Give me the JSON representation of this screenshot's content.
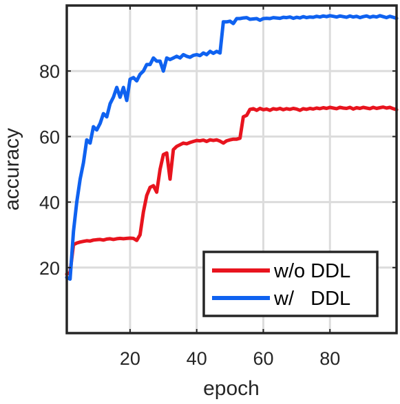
{
  "chart_data": {
    "type": "line",
    "xlabel": "epoch",
    "ylabel": "accuracy",
    "xlim": [
      1,
      100
    ],
    "ylim": [
      0,
      100
    ],
    "xticks": [
      20,
      40,
      60,
      80
    ],
    "yticks": [
      20,
      40,
      60,
      80
    ],
    "xtick_labels": [
      "20",
      "40",
      "60",
      "80"
    ],
    "ytick_labels": [
      "20",
      "40",
      "60",
      "80"
    ],
    "grid": true,
    "legend_position": "bottom-right",
    "series": [
      {
        "name": "w/o DDL",
        "color": "#e8141e",
        "x": [
          1,
          2,
          3,
          4,
          5,
          6,
          7,
          8,
          9,
          10,
          11,
          12,
          13,
          14,
          15,
          16,
          17,
          18,
          19,
          20,
          21,
          22,
          23,
          24,
          25,
          26,
          27,
          28,
          29,
          30,
          31,
          32,
          33,
          34,
          35,
          36,
          37,
          38,
          39,
          40,
          41,
          42,
          43,
          44,
          45,
          46,
          47,
          48,
          49,
          50,
          51,
          52,
          53,
          54,
          55,
          56,
          57,
          58,
          59,
          60,
          61,
          62,
          63,
          64,
          65,
          66,
          67,
          68,
          69,
          70,
          71,
          72,
          73,
          74,
          75,
          76,
          77,
          78,
          79,
          80,
          81,
          82,
          83,
          84,
          85,
          86,
          87,
          88,
          89,
          90,
          91,
          92,
          93,
          94,
          95,
          96,
          97,
          98,
          99,
          100
        ],
        "y": [
          18,
          18.5,
          27,
          27.5,
          27.8,
          28,
          28.2,
          28.1,
          28.4,
          28.5,
          28.6,
          28.4,
          28.7,
          28.8,
          28.6,
          28.8,
          28.9,
          28.8,
          28.9,
          29,
          28.9,
          28.3,
          30,
          37,
          42,
          44.5,
          45,
          43,
          50,
          54.5,
          55,
          47,
          56,
          57,
          57.5,
          58,
          57.8,
          58.2,
          58.5,
          58.8,
          58.7,
          58.9,
          58.5,
          59,
          58.8,
          59,
          58.6,
          58,
          58.7,
          59,
          59.2,
          59.2,
          59.5,
          66,
          66.5,
          68.3,
          68.5,
          68,
          68.6,
          68.2,
          68.4,
          68,
          68.5,
          68.3,
          68.6,
          68.2,
          68.5,
          68.3,
          68.6,
          68.4,
          68,
          68.5,
          68.3,
          68.6,
          68.4,
          68.7,
          68.5,
          68.8,
          68.6,
          68.9,
          68.7,
          68.5,
          68.9,
          68.7,
          68.6,
          68.9,
          68.4,
          68.8,
          68.6,
          68.9,
          68.7,
          68.5,
          68.9,
          68.6,
          68.8,
          69,
          68.7,
          68.9,
          68.5,
          68.2
        ]
      },
      {
        "name": "w/   DDL",
        "color": "#0f62f0",
        "x": [
          1,
          2,
          3,
          4,
          5,
          6,
          7,
          8,
          9,
          10,
          11,
          12,
          13,
          14,
          15,
          16,
          17,
          18,
          19,
          20,
          21,
          22,
          23,
          24,
          25,
          26,
          27,
          28,
          29,
          30,
          31,
          32,
          33,
          34,
          35,
          36,
          37,
          38,
          39,
          40,
          41,
          42,
          43,
          44,
          45,
          46,
          47,
          48,
          49,
          50,
          51,
          52,
          53,
          54,
          55,
          56,
          57,
          58,
          59,
          60,
          61,
          62,
          63,
          64,
          65,
          66,
          67,
          68,
          69,
          70,
          71,
          72,
          73,
          74,
          75,
          76,
          77,
          78,
          79,
          80,
          81,
          82,
          83,
          84,
          85,
          86,
          87,
          88,
          89,
          90,
          91,
          92,
          93,
          94,
          95,
          96,
          97,
          98,
          99,
          100
        ],
        "y": [
          17,
          16.5,
          31,
          40,
          47,
          52,
          59,
          58,
          63,
          62,
          64,
          67,
          66,
          70,
          72,
          75,
          72,
          75,
          71,
          77.5,
          78,
          77,
          79,
          80,
          82,
          82,
          84,
          83,
          83,
          80,
          84,
          83.5,
          84,
          84.5,
          84,
          85,
          84.5,
          84.2,
          84.8,
          85,
          84.7,
          85.5,
          85,
          86,
          85.4,
          86,
          85.5,
          95,
          95,
          95.2,
          94.5,
          96,
          96,
          96.2,
          96.3,
          95.8,
          95.9,
          96,
          95.5,
          96,
          96.1,
          96,
          96.3,
          96.2,
          96.1,
          96.4,
          96.3,
          96.5,
          96.1,
          96.4,
          96.2,
          96.6,
          96.3,
          96.5,
          96.4,
          96.7,
          96.5,
          96.8,
          96.6,
          96.9,
          96.7,
          96.5,
          96.8,
          96.6,
          96.4,
          96.8,
          96.5,
          96.7,
          96.3,
          96.6,
          96.8,
          96.4,
          96.7,
          96.5,
          96.9,
          96.6,
          96.3,
          96.7,
          96.4,
          96.1
        ]
      }
    ]
  }
}
